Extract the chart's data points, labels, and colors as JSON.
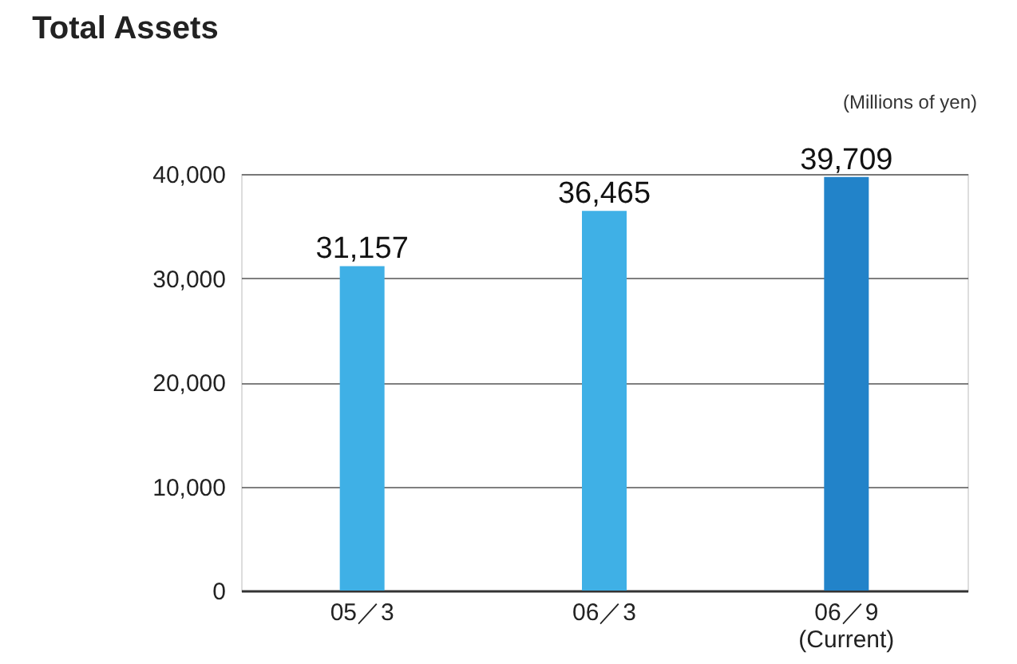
{
  "chart_data": {
    "type": "bar",
    "title": "Total Assets",
    "annotations": [
      "(Millions of yen)"
    ],
    "categories": [
      "05／3",
      "06／3",
      "06／9\n(Current)"
    ],
    "values": [
      31157,
      36465,
      39709
    ],
    "colors": [
      "#3fb0e6",
      "#3fb0e6",
      "#2283c9"
    ],
    "ylim": [
      0,
      40000
    ],
    "yticks": [
      {
        "value": 0,
        "label": "0"
      },
      {
        "value": 10000,
        "label": "10,000"
      },
      {
        "value": 20000,
        "label": "20,000"
      },
      {
        "value": 30000,
        "label": "30,000"
      },
      {
        "value": 40000,
        "label": "40,000"
      }
    ],
    "value_labels": [
      "31,157",
      "36,465",
      "39,709"
    ],
    "grid": "y"
  }
}
